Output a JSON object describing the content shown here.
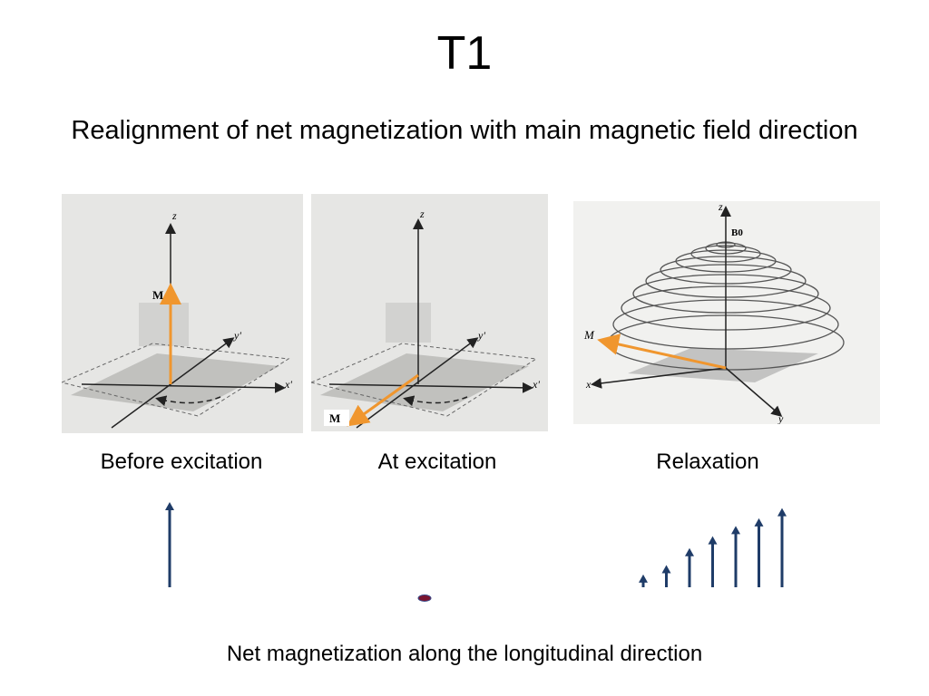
{
  "slide": {
    "title": "T1",
    "subtitle": "Realignment of net magnetization with main magnetic field direction",
    "bottom_note": "Net magnetization along the longitudinal direction"
  },
  "panels": [
    {
      "caption": "Before excitation",
      "z_label": "z",
      "y_label": "y'",
      "x_label": "x'",
      "m_label": "M"
    },
    {
      "caption": "At excitation",
      "z_label": "z",
      "y_label": "y'",
      "x_label": "x'",
      "m_label": "M"
    },
    {
      "caption": "Relaxation",
      "z_label": "z",
      "y_label": "y",
      "x_label": "x",
      "m_label": "M",
      "b0_label": "B0"
    }
  ],
  "longitudinal_magnetization": {
    "before_excitation": 1.0,
    "at_excitation": 0.0,
    "relaxation_sequence": [
      0.15,
      0.26,
      0.46,
      0.6,
      0.72,
      0.81,
      0.93
    ]
  },
  "colors": {
    "m_vector": "#f0962e",
    "long_arrow": "#1f3c68",
    "zero_dot": "#7a1530",
    "panel_bg": "#e6e6e4"
  }
}
